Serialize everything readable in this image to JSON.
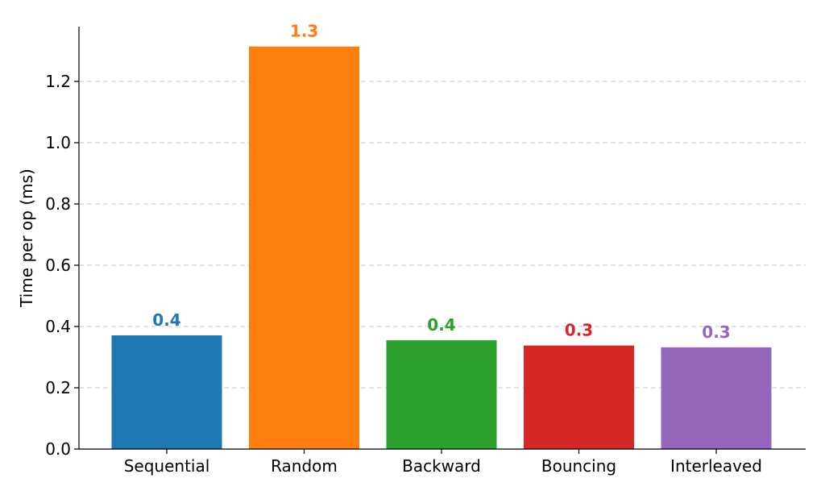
{
  "chart_data": {
    "type": "bar",
    "categories": [
      "Sequential",
      "Random",
      "Backward",
      "Bouncing",
      "Interleaved"
    ],
    "values": [
      0.371,
      1.314,
      0.355,
      0.338,
      0.332
    ],
    "data_labels": [
      "0.4",
      "1.3",
      "0.4",
      "0.3",
      "0.3"
    ],
    "colors": [
      "#1f77b4",
      "#ff7f0e",
      "#2ca02c",
      "#d62728",
      "#9467bd"
    ],
    "ylabel": "Time per op (ms)",
    "xlabel": "",
    "ylim": [
      0,
      1.38
    ],
    "yticks": [
      0.0,
      0.2,
      0.4,
      0.6,
      0.8,
      1.0,
      1.2
    ],
    "ytick_labels": [
      "0.0",
      "0.2",
      "0.4",
      "0.6",
      "0.8",
      "1.0",
      "1.2"
    ],
    "grid": "horizontal dashed"
  }
}
